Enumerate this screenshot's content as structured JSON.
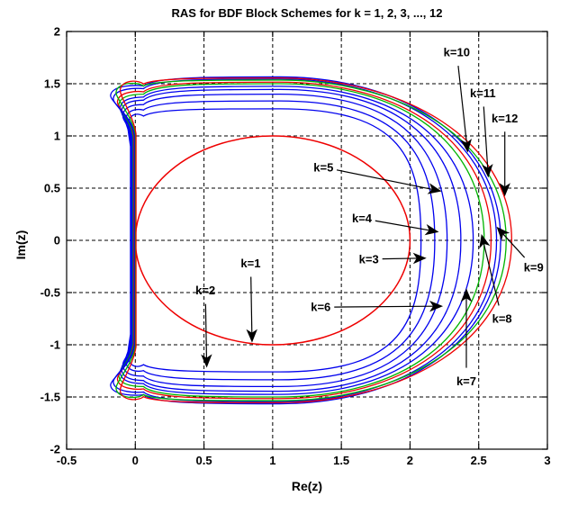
{
  "figure": {
    "title": "RAS for BDF Block Schemes for k = 1, 2, 3, ..., 12"
  },
  "chart_data": {
    "type": "line",
    "title": "RAS for BDF Block Schemes for k = 1, 2, 3, ..., 12",
    "xlabel": "Re(z)",
    "ylabel": "Im(z)",
    "xlim": [
      -0.5,
      3
    ],
    "ylim": [
      -2,
      2
    ],
    "xticks": [
      -0.5,
      0,
      0.5,
      1,
      1.5,
      2,
      2.5,
      3
    ],
    "xtick_labels": [
      "-0.5",
      "0",
      "0.5",
      "1",
      "1.5",
      "2",
      "2.5",
      "3"
    ],
    "yticks": [
      -2,
      -1.5,
      -1,
      -0.5,
      0,
      0.5,
      1,
      1.5,
      2
    ],
    "ytick_labels": [
      "-2",
      "-1.5",
      "-1",
      "-0.5",
      "0",
      "0.5",
      "1",
      "1.5",
      "2"
    ],
    "grid": true,
    "grid_style": "dashed",
    "legend": "none",
    "colors": {
      "blue": "#0000ee",
      "green": "#00b400",
      "red": "#ee0000",
      "axis": "#000000"
    },
    "curves": [
      {
        "k": 1,
        "color": "red",
        "shape": "circle",
        "center": [
          1,
          0
        ],
        "radius": 1.0,
        "re_right": 2.0,
        "im_top": 1.0
      },
      {
        "k": 2,
        "color": "blue",
        "shape": "bdf",
        "re_right": 2.08,
        "im_top": 1.26,
        "lobe": [
          -0.05,
          1.12
        ],
        "pinch_x": -0.035,
        "pinch_im": 0.9
      },
      {
        "k": 3,
        "color": "blue",
        "shape": "bdf",
        "re_right": 2.18,
        "im_top": 1.335,
        "lobe": [
          -0.07,
          1.16
        ],
        "pinch_x": -0.031,
        "pinch_im": 0.93
      },
      {
        "k": 4,
        "color": "blue",
        "shape": "bdf",
        "re_right": 2.27,
        "im_top": 1.4,
        "lobe": [
          -0.09,
          1.2
        ],
        "pinch_x": -0.027,
        "pinch_im": 0.95
      },
      {
        "k": 5,
        "color": "blue",
        "shape": "bdf",
        "re_right": 2.37,
        "im_top": 1.445,
        "lobe": [
          -0.1,
          1.24
        ],
        "pinch_x": -0.023,
        "pinch_im": 0.97
      },
      {
        "k": 6,
        "color": "blue",
        "shape": "bdf",
        "re_right": 2.46,
        "im_top": 1.475,
        "lobe": [
          -0.11,
          1.27
        ],
        "pinch_x": -0.019,
        "pinch_im": 0.98
      },
      {
        "k": 7,
        "color": "green",
        "shape": "bdf",
        "re_right": 2.54,
        "im_top": 1.5,
        "lobe": [
          -0.12,
          1.3
        ],
        "pinch_x": -0.015,
        "pinch_im": 0.99
      },
      {
        "k": 8,
        "color": "red",
        "shape": "bdf",
        "re_right": 2.59,
        "im_top": 1.515,
        "lobe": [
          -0.13,
          1.33
        ],
        "pinch_x": -0.011,
        "pinch_im": 1.0
      },
      {
        "k": 9,
        "color": "blue",
        "shape": "bdf",
        "re_right": 2.63,
        "im_top": 1.545,
        "lobe": [
          -0.16,
          1.36
        ],
        "pinch_x": -0.007,
        "pinch_im": 1.0
      },
      {
        "k": 10,
        "color": "blue",
        "shape": "bdf",
        "re_right": 2.66,
        "im_top": 1.565,
        "lobe": [
          -0.18,
          1.39
        ],
        "pinch_x": -0.003,
        "pinch_im": 1.01
      },
      {
        "k": 11,
        "color": "green",
        "shape": "bdf",
        "re_right": 2.7,
        "im_top": 1.535,
        "lobe": [
          -0.14,
          1.42
        ],
        "pinch_x": 0.001,
        "pinch_im": 1.01
      },
      {
        "k": 12,
        "color": "red",
        "shape": "bdf",
        "re_right": 2.74,
        "im_top": 1.555,
        "lobe": [
          -0.11,
          1.44
        ],
        "pinch_x": 0.005,
        "pinch_im": 1.02
      }
    ],
    "annotations": [
      {
        "label": "k=1",
        "label_at": [
          0.84,
          -0.22
        ],
        "tip_at": [
          0.85,
          -0.98
        ]
      },
      {
        "label": "k=2",
        "label_at": [
          0.51,
          -0.48
        ],
        "tip_at": [
          0.52,
          -1.22
        ]
      },
      {
        "label": "k=3",
        "label_at": [
          1.7,
          -0.18
        ],
        "tip_at": [
          2.12,
          -0.17
        ]
      },
      {
        "label": "k=4",
        "label_at": [
          1.65,
          0.21
        ],
        "tip_at": [
          2.21,
          0.08
        ]
      },
      {
        "label": "k=5",
        "label_at": [
          1.37,
          0.7
        ],
        "tip_at": [
          2.23,
          0.47
        ]
      },
      {
        "label": "k=6",
        "label_at": [
          1.35,
          -0.64
        ],
        "tip_at": [
          2.24,
          -0.63
        ]
      },
      {
        "label": "k=7",
        "label_at": [
          2.41,
          -1.35
        ],
        "tip_at": [
          2.41,
          -0.46
        ]
      },
      {
        "label": "k=8",
        "label_at": [
          2.67,
          -0.75
        ],
        "tip_at": [
          2.52,
          0.06
        ]
      },
      {
        "label": "k=9",
        "label_at": [
          2.9,
          -0.26
        ],
        "tip_at": [
          2.63,
          0.13
        ]
      },
      {
        "label": "k=10",
        "label_at": [
          2.34,
          1.8
        ],
        "tip_at": [
          2.42,
          0.84
        ]
      },
      {
        "label": "k=11",
        "label_at": [
          2.53,
          1.41
        ],
        "tip_at": [
          2.57,
          0.6
        ]
      },
      {
        "label": "k=12",
        "label_at": [
          2.69,
          1.17
        ],
        "tip_at": [
          2.69,
          0.42
        ]
      }
    ]
  }
}
